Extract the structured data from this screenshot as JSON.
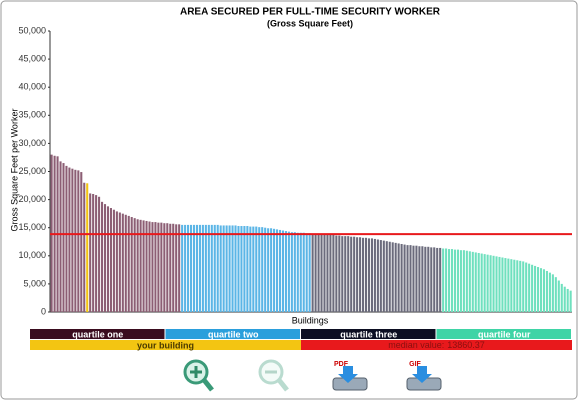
{
  "chart_data": {
    "type": "bar",
    "title": "AREA SECURED PER FULL-TIME SECURITY WORKER",
    "subtitle": "(Gross Square Feet)",
    "y_label": "Gross Square Feet per Worker",
    "x_label": "Buildings",
    "ylim": [
      0,
      50000
    ],
    "yticks": [
      0,
      {
        "value": 5000,
        "label": "5,000"
      },
      {
        "value": 10000,
        "label": "10,000"
      },
      {
        "value": 15000,
        "label": "15,000"
      },
      {
        "value": 20000,
        "label": "20,000"
      },
      {
        "value": 25000,
        "label": "25,000"
      },
      {
        "value": 30000,
        "label": "30,000"
      },
      {
        "value": 35000,
        "label": "35,000"
      },
      {
        "value": 40000,
        "label": "40,000"
      },
      {
        "value": 45000,
        "label": "45,000"
      },
      {
        "value": 50000,
        "label": "50,000"
      }
    ],
    "series": [
      {
        "name": "quartile one",
        "color": "#8c5e74",
        "legend_color": "#3a0c1f",
        "values": [
          28000,
          27800,
          27700,
          26800,
          26500,
          26000,
          25700,
          25500,
          25300,
          25200,
          24900,
          23000,
          22900,
          21100,
          21000,
          20800,
          20500,
          19600,
          19200,
          18800,
          18500,
          18200,
          17900,
          17700,
          17500,
          17300,
          17100,
          16900,
          16700,
          16500,
          16400,
          16300,
          16200,
          16100,
          16000,
          16000,
          15900,
          15900,
          15800,
          15800,
          15700,
          15700,
          15600,
          15600
        ]
      },
      {
        "name": "quartile two",
        "color": "#5bb5e6",
        "legend_color": "#2b9fdc",
        "values": [
          15500,
          15500,
          15500,
          15500,
          15500,
          15500,
          15500,
          15500,
          15500,
          15500,
          15500,
          15500,
          15500,
          15400,
          15400,
          15400,
          15400,
          15400,
          15400,
          15300,
          15300,
          15300,
          15300,
          15200,
          15200,
          15200,
          15100,
          15100,
          15000,
          14900,
          14900,
          14800,
          14700,
          14600,
          14500,
          14400,
          14300,
          14200,
          14200,
          14100,
          14100,
          14100,
          14000,
          14000
        ]
      },
      {
        "name": "quartile three",
        "color": "#6b6b7c",
        "legend_color": "#0c0e22",
        "values": [
          13900,
          13900,
          13800,
          13800,
          13800,
          13700,
          13700,
          13700,
          13600,
          13600,
          13500,
          13500,
          13500,
          13400,
          13400,
          13300,
          13300,
          13200,
          13200,
          13100,
          13100,
          13000,
          12900,
          12800,
          12700,
          12600,
          12500,
          12400,
          12300,
          12200,
          12100,
          12000,
          11900,
          11900,
          11800,
          11800,
          11700,
          11700,
          11600,
          11600,
          11500,
          11500,
          11400,
          11400
        ]
      },
      {
        "name": "quartile four",
        "color": "#6fe0be",
        "legend_color": "#3fd4a6",
        "values": [
          11300,
          11300,
          11200,
          11200,
          11100,
          11100,
          11000,
          11000,
          10900,
          10800,
          10700,
          10600,
          10500,
          10400,
          10300,
          10200,
          10100,
          10000,
          9900,
          9800,
          9700,
          9600,
          9500,
          9400,
          9300,
          9200,
          9100,
          9000,
          8800,
          8600,
          8400,
          8200,
          8000,
          7800,
          7600,
          7300,
          7000,
          6700,
          6200,
          5600,
          5000,
          4500,
          4100,
          3800
        ]
      }
    ],
    "highlight": {
      "name": "your building",
      "color": "#f3c512",
      "series": 0,
      "index": 12
    },
    "median": 13860.37,
    "median_label": "median value:",
    "median_color": "#e8191c"
  },
  "toolbar": [
    "PDF",
    "GIF"
  ]
}
